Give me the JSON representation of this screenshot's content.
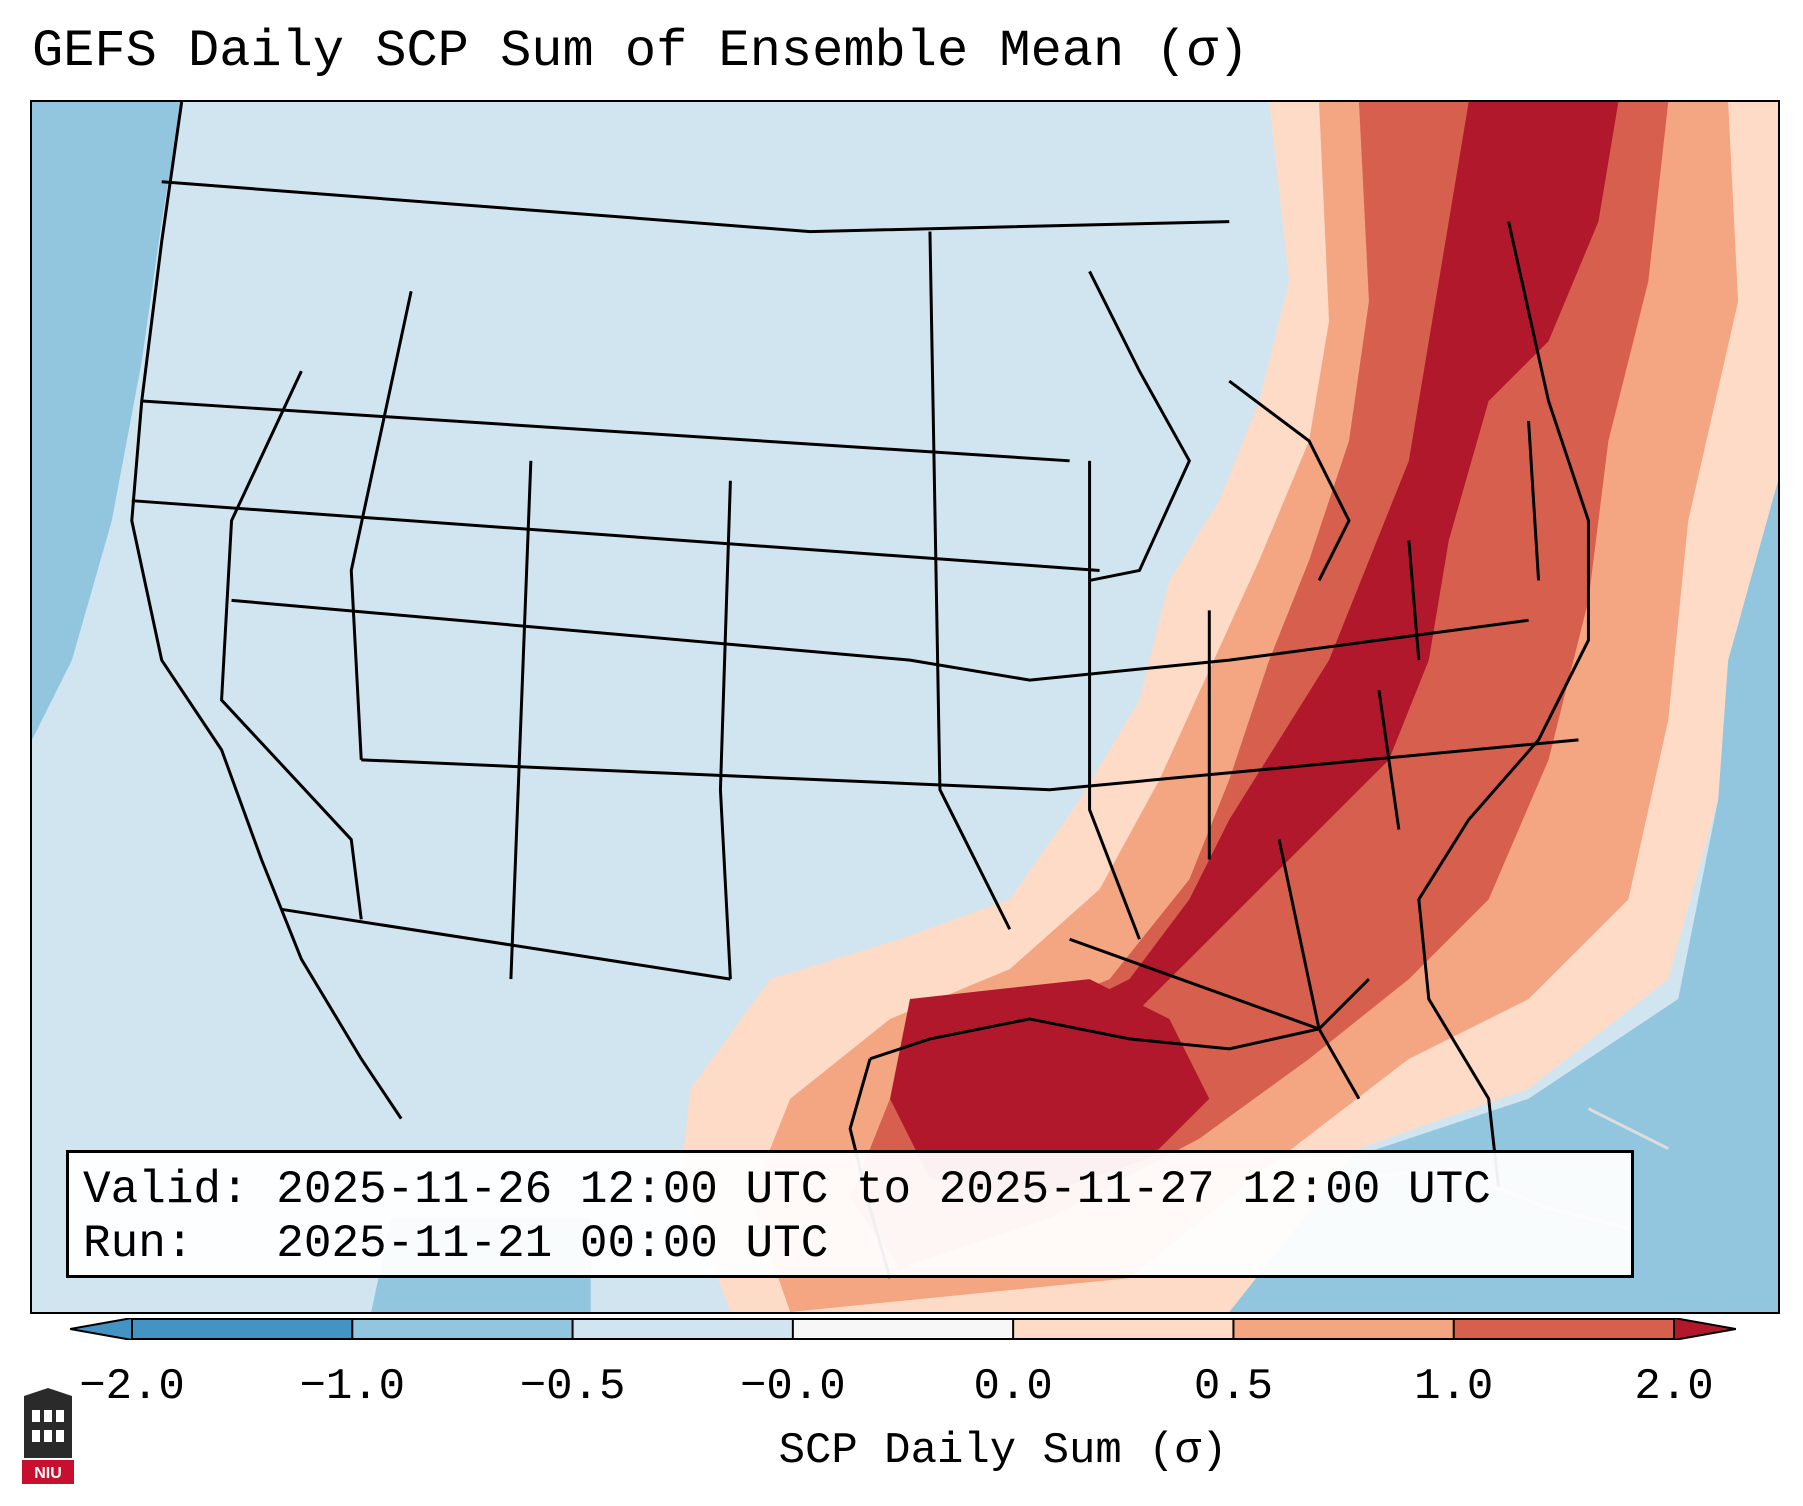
{
  "title": "GEFS Daily SCP Sum of Ensemble Mean (σ)",
  "info": {
    "valid_line": "Valid: 2025-11-26 12:00 UTC to 2025-11-27 12:00 UTC",
    "run_line": "Run:   2025-11-21 00:00 UTC"
  },
  "colorbar": {
    "label": "SCP Daily Sum (σ)",
    "ticks": [
      "−2.0",
      "−1.0",
      "−0.5",
      "−0.0",
      "0.0",
      "0.5",
      "1.0",
      "2.0"
    ],
    "colors": [
      "#4393c3",
      "#92c5de",
      "#d1e5f0",
      "#f7f7f7",
      "#fddbc7",
      "#f4a582",
      "#d6604d",
      "#b2182b"
    ],
    "extend": "both"
  },
  "logo": {
    "text": "NIU",
    "icon": "university-building-icon"
  },
  "map": {
    "projection": "lambert-conformal",
    "region": "contiguous-united-states",
    "features": [
      "coastlines",
      "country-borders",
      "state-borders"
    ],
    "highlight": "Southeast US and Gulf of Mexico"
  }
}
